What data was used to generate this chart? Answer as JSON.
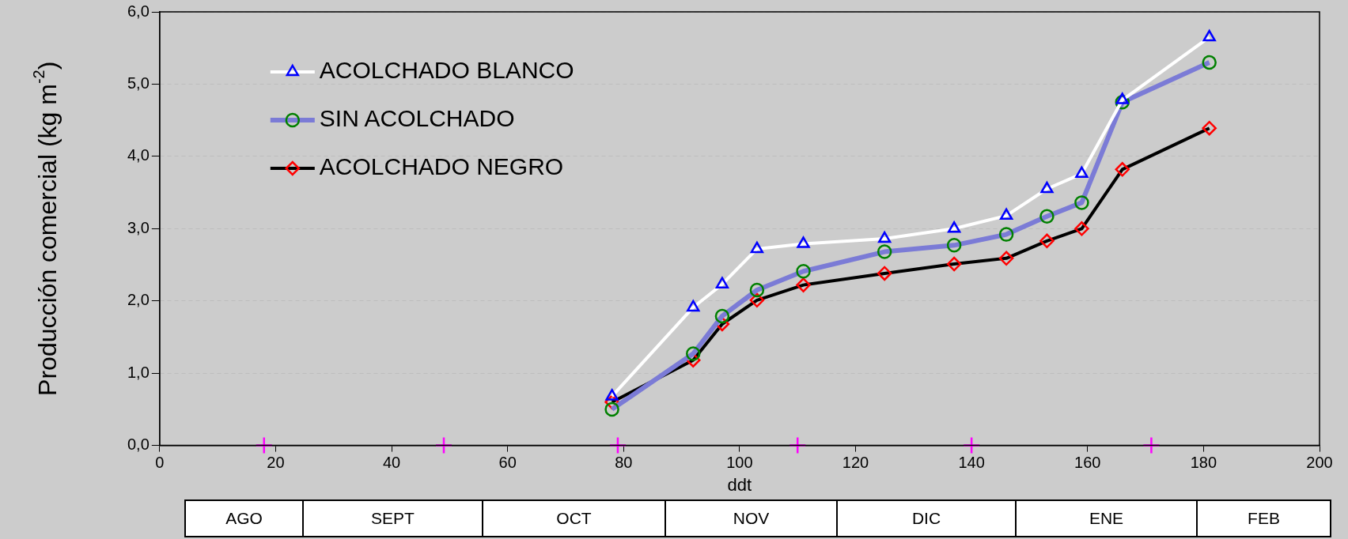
{
  "chart_data": {
    "type": "line",
    "xlabel": "ddt",
    "ylabel": "Producción comercial (kg m$^{-2}$)",
    "x": [
      78,
      92,
      97,
      103,
      111,
      125,
      137,
      146,
      153,
      159,
      166,
      181
    ],
    "xlim": [
      0,
      200
    ],
    "xticks": [
      0,
      20,
      40,
      60,
      80,
      100,
      120,
      140,
      160,
      180,
      200
    ],
    "ylim": [
      0,
      6
    ],
    "yticks": [
      {
        "value": 0,
        "label": "0,0"
      },
      {
        "value": 1,
        "label": "1,0"
      },
      {
        "value": 2,
        "label": "2,0"
      },
      {
        "value": 3,
        "label": "3,0"
      },
      {
        "value": 4,
        "label": "4,0"
      },
      {
        "value": 5,
        "label": "5,0"
      },
      {
        "value": 6,
        "label": "6,0"
      }
    ],
    "grid": "y",
    "legend": "top left",
    "series": [
      {
        "name": "ACOLCHADO BLANCO",
        "color": "#ffffff",
        "marker": "triangle",
        "colors": [
          "#0000ff",
          "#0000ff",
          "#0000ff",
          "#0000ff",
          "#0000ff",
          "#0000ff",
          "#0000ff",
          "#0000ff",
          "#0000ff",
          "#0000ff",
          "#0000ff",
          "#0000ff"
        ],
        "values": [
          0.68,
          1.91,
          2.23,
          2.72,
          2.79,
          2.86,
          3.0,
          3.18,
          3.55,
          3.76,
          4.78,
          5.65
        ]
      },
      {
        "name": "SIN ACOLCHADO",
        "color": "#7b7bd6",
        "marker": "circle",
        "colors": [
          "#008000",
          "#008000",
          "#008000",
          "#008000",
          "#008000",
          "#008000",
          "#008000",
          "#008000",
          "#008000",
          "#008000",
          "#008000",
          "#008000"
        ],
        "values": [
          0.5,
          1.27,
          1.79,
          2.15,
          2.41,
          2.68,
          2.77,
          2.92,
          3.17,
          3.36,
          4.75,
          5.3
        ]
      },
      {
        "name": "ACOLCHADO NEGRO",
        "color": "#000000",
        "marker": "diamond",
        "colors": [
          "#ff0000",
          "#ff0000",
          "#ff0000",
          "#ff0000",
          "#ff0000",
          "#ff0000",
          "#ff0000",
          "#ff0000",
          "#ff0000",
          "#ff0000",
          "#ff0000",
          "#ff0000"
        ],
        "values": [
          0.6,
          1.18,
          1.68,
          2.01,
          2.22,
          2.38,
          2.51,
          2.59,
          2.83,
          3.0,
          3.82,
          4.39
        ]
      },
      {
        "type": "scatter",
        "color": "#ff00ff",
        "marker": "cross",
        "x": [
          18,
          49,
          79,
          110,
          140,
          171
        ],
        "values": [
          0,
          0,
          0,
          0,
          0,
          0
        ]
      }
    ],
    "annotations": [
      "AGO",
      "SEPT",
      "OCT",
      "NOV",
      "DIC",
      "ENE",
      "FEB"
    ]
  }
}
